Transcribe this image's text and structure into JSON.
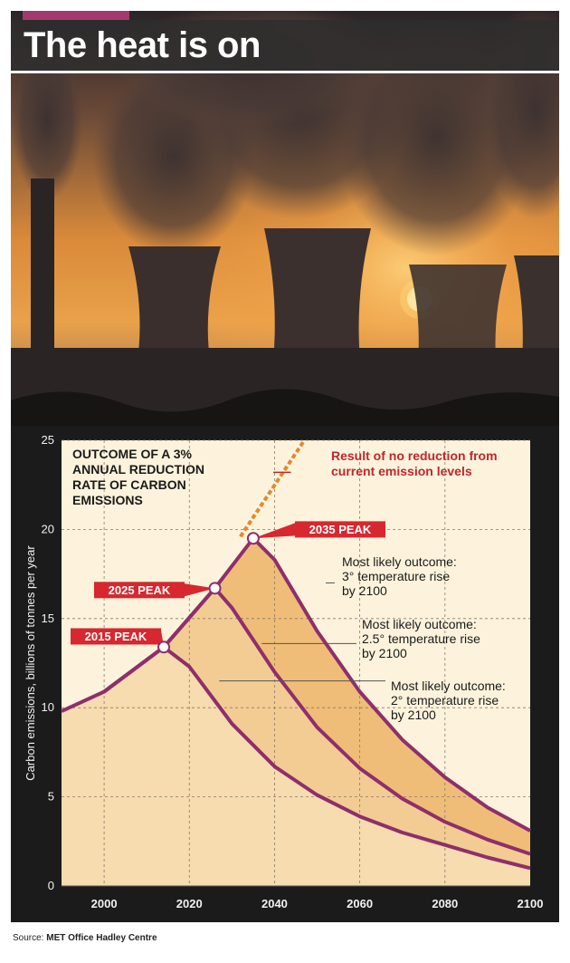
{
  "header": {
    "headline": "The heat is on",
    "accent_color": "#a23a6e"
  },
  "photo": {
    "icon": "power-station-smoke-sunset-photo"
  },
  "chart_data": {
    "type": "area",
    "title_lines": [
      "OUTCOME OF A 3%",
      "ANNUAL REDUCTION",
      "RATE OF CARBON",
      "EMISSIONS"
    ],
    "ylabel": "Carbon emissions, billions of tonnes per year",
    "xlabel": "",
    "xlim": [
      1990,
      2100
    ],
    "ylim": [
      0,
      25
    ],
    "xticks": [
      2000,
      2020,
      2040,
      2060,
      2080,
      2100
    ],
    "yticks": [
      0,
      5,
      10,
      15,
      20,
      25
    ],
    "grid": true,
    "colors": {
      "background": "#fdf3dc",
      "band_2015": "#f6dcae",
      "band_2025": "#f3cc94",
      "band_2035": "#efbd78",
      "curve": "#8e2f6b",
      "no_reduction": "#e08a2c",
      "label_bg": "#d7272f",
      "annotation_text": "#c0262d"
    },
    "series": [
      {
        "name": "2015 PEAK",
        "x": [
          1990,
          2000,
          2014,
          2020,
          2030,
          2040,
          2050,
          2060,
          2070,
          2080,
          2090,
          2100
        ],
        "y": [
          9.8,
          10.9,
          13.4,
          12.3,
          9.1,
          6.7,
          5.1,
          3.9,
          3.0,
          2.3,
          1.6,
          1.0
        ]
      },
      {
        "name": "2025 PEAK",
        "x": [
          2000,
          2014,
          2026,
          2030,
          2040,
          2050,
          2060,
          2070,
          2080,
          2090,
          2100
        ],
        "y": [
          10.9,
          13.4,
          16.7,
          15.6,
          12.0,
          8.9,
          6.6,
          4.9,
          3.6,
          2.6,
          1.8
        ]
      },
      {
        "name": "2035 PEAK",
        "x": [
          2000,
          2014,
          2026,
          2035,
          2040,
          2050,
          2060,
          2070,
          2080,
          2090,
          2100
        ],
        "y": [
          10.9,
          13.4,
          16.7,
          19.5,
          18.3,
          14.3,
          10.9,
          8.2,
          6.1,
          4.4,
          3.1
        ]
      },
      {
        "name": "no_reduction",
        "x": [
          2032,
          2047
        ],
        "y": [
          19.6,
          25.0
        ]
      }
    ],
    "peaks": [
      {
        "label": "2015 PEAK",
        "x": 2014,
        "y": 13.4
      },
      {
        "label": "2025 PEAK",
        "x": 2026,
        "y": 16.7
      },
      {
        "label": "2035 PEAK",
        "x": 2035,
        "y": 19.5
      }
    ],
    "annotations": {
      "no_reduction": [
        "Result of no reduction from",
        "current emission levels"
      ],
      "outcome_3": [
        "Most likely outcome:",
        "3° temperature rise",
        "by 2100"
      ],
      "outcome_25": [
        "Most likely outcome:",
        "2.5° temperature rise",
        "by 2100"
      ],
      "outcome_2": [
        "Most likely outcome:",
        "2° temperature rise",
        "by 2100"
      ]
    }
  },
  "footer": {
    "source_label": "Source:",
    "source_name": "MET Office Hadley Centre"
  }
}
